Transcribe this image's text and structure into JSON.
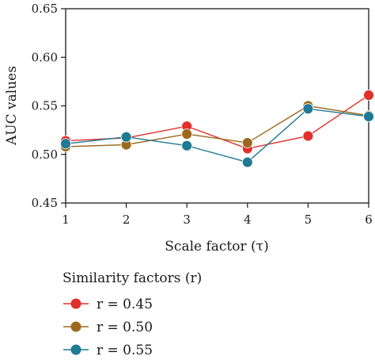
{
  "chart_data": {
    "type": "line",
    "title": "",
    "xlabel": "Scale factor (τ)",
    "ylabel": "AUC values",
    "x": [
      1,
      2,
      3,
      4,
      5,
      6
    ],
    "xlim": [
      1,
      6
    ],
    "ylim": [
      0.45,
      0.65
    ],
    "yticks": [
      0.45,
      0.5,
      0.55,
      0.6,
      0.65
    ],
    "ytick_labels": [
      "0.45",
      "0.50",
      "0.55",
      "0.60",
      "0.65"
    ],
    "xtick_labels": [
      "1",
      "2",
      "3",
      "4",
      "5",
      "6"
    ],
    "grid": false,
    "legend": {
      "title": "Similarity factors (r)",
      "placement": "bottom-left"
    },
    "series": [
      {
        "name": "r = 0.45",
        "color": "#e0302a",
        "values": [
          0.514,
          0.517,
          0.529,
          0.506,
          0.519,
          0.561
        ]
      },
      {
        "name": "r = 0.50",
        "color": "#9c6a1e",
        "values": [
          0.508,
          0.51,
          0.521,
          0.512,
          0.55,
          0.54
        ]
      },
      {
        "name": "r = 0.55",
        "color": "#1f7a94",
        "values": [
          0.511,
          0.518,
          0.509,
          0.492,
          0.547,
          0.539
        ]
      }
    ]
  }
}
